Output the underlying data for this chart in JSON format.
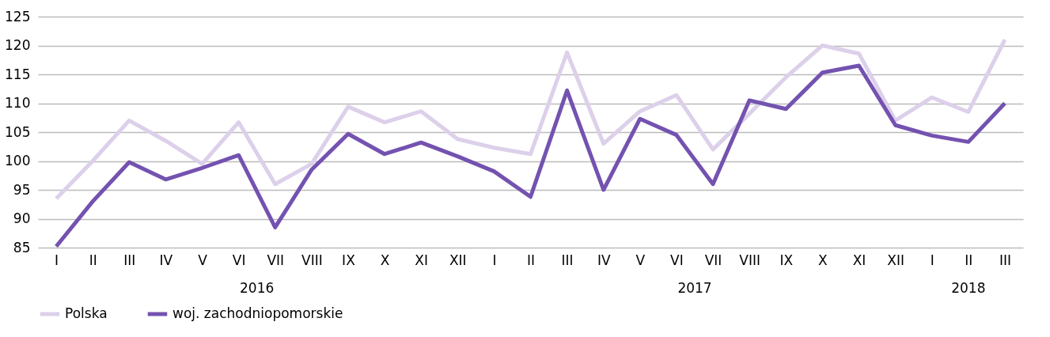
{
  "chart_data": {
    "type": "line",
    "categories": [
      "I",
      "II",
      "III",
      "IV",
      "V",
      "VI",
      "VII",
      "VIII",
      "IX",
      "X",
      "XI",
      "XII",
      "I",
      "II",
      "III",
      "IV",
      "V",
      "VI",
      "VII",
      "VIII",
      "IX",
      "X",
      "XI",
      "XII",
      "I",
      "II",
      "III"
    ],
    "series": [
      {
        "name": "Polska",
        "color": "#dcd0ea",
        "values": [
          93.5,
          100,
          107,
          103.5,
          99.5,
          106.7,
          96,
          99.5,
          109.4,
          106.7,
          108.6,
          103.8,
          102.3,
          101.2,
          118.8,
          103,
          108.6,
          111.4,
          102,
          108.2,
          114.5,
          120,
          118.6,
          107,
          111,
          108.5,
          121
        ]
      },
      {
        "name": "woj. zachodniopomorskie",
        "color": "#7452b0",
        "values": [
          85.2,
          93,
          99.8,
          96.8,
          98.8,
          101,
          88.5,
          98.5,
          104.7,
          101.2,
          103.2,
          100.8,
          98.2,
          93.8,
          112.2,
          95,
          107.3,
          104.5,
          96,
          110.5,
          109,
          115.3,
          116.5,
          106.2,
          104.4,
          103.3,
          110
        ]
      }
    ],
    "ylim": [
      85,
      125
    ],
    "yticks": [
      85,
      90,
      95,
      100,
      105,
      110,
      115,
      120,
      125
    ],
    "annotations": [
      "2016",
      "2017",
      "2018"
    ],
    "grid": "y",
    "legend": "bottom",
    "marker": "none",
    "line_style": "solid"
  }
}
